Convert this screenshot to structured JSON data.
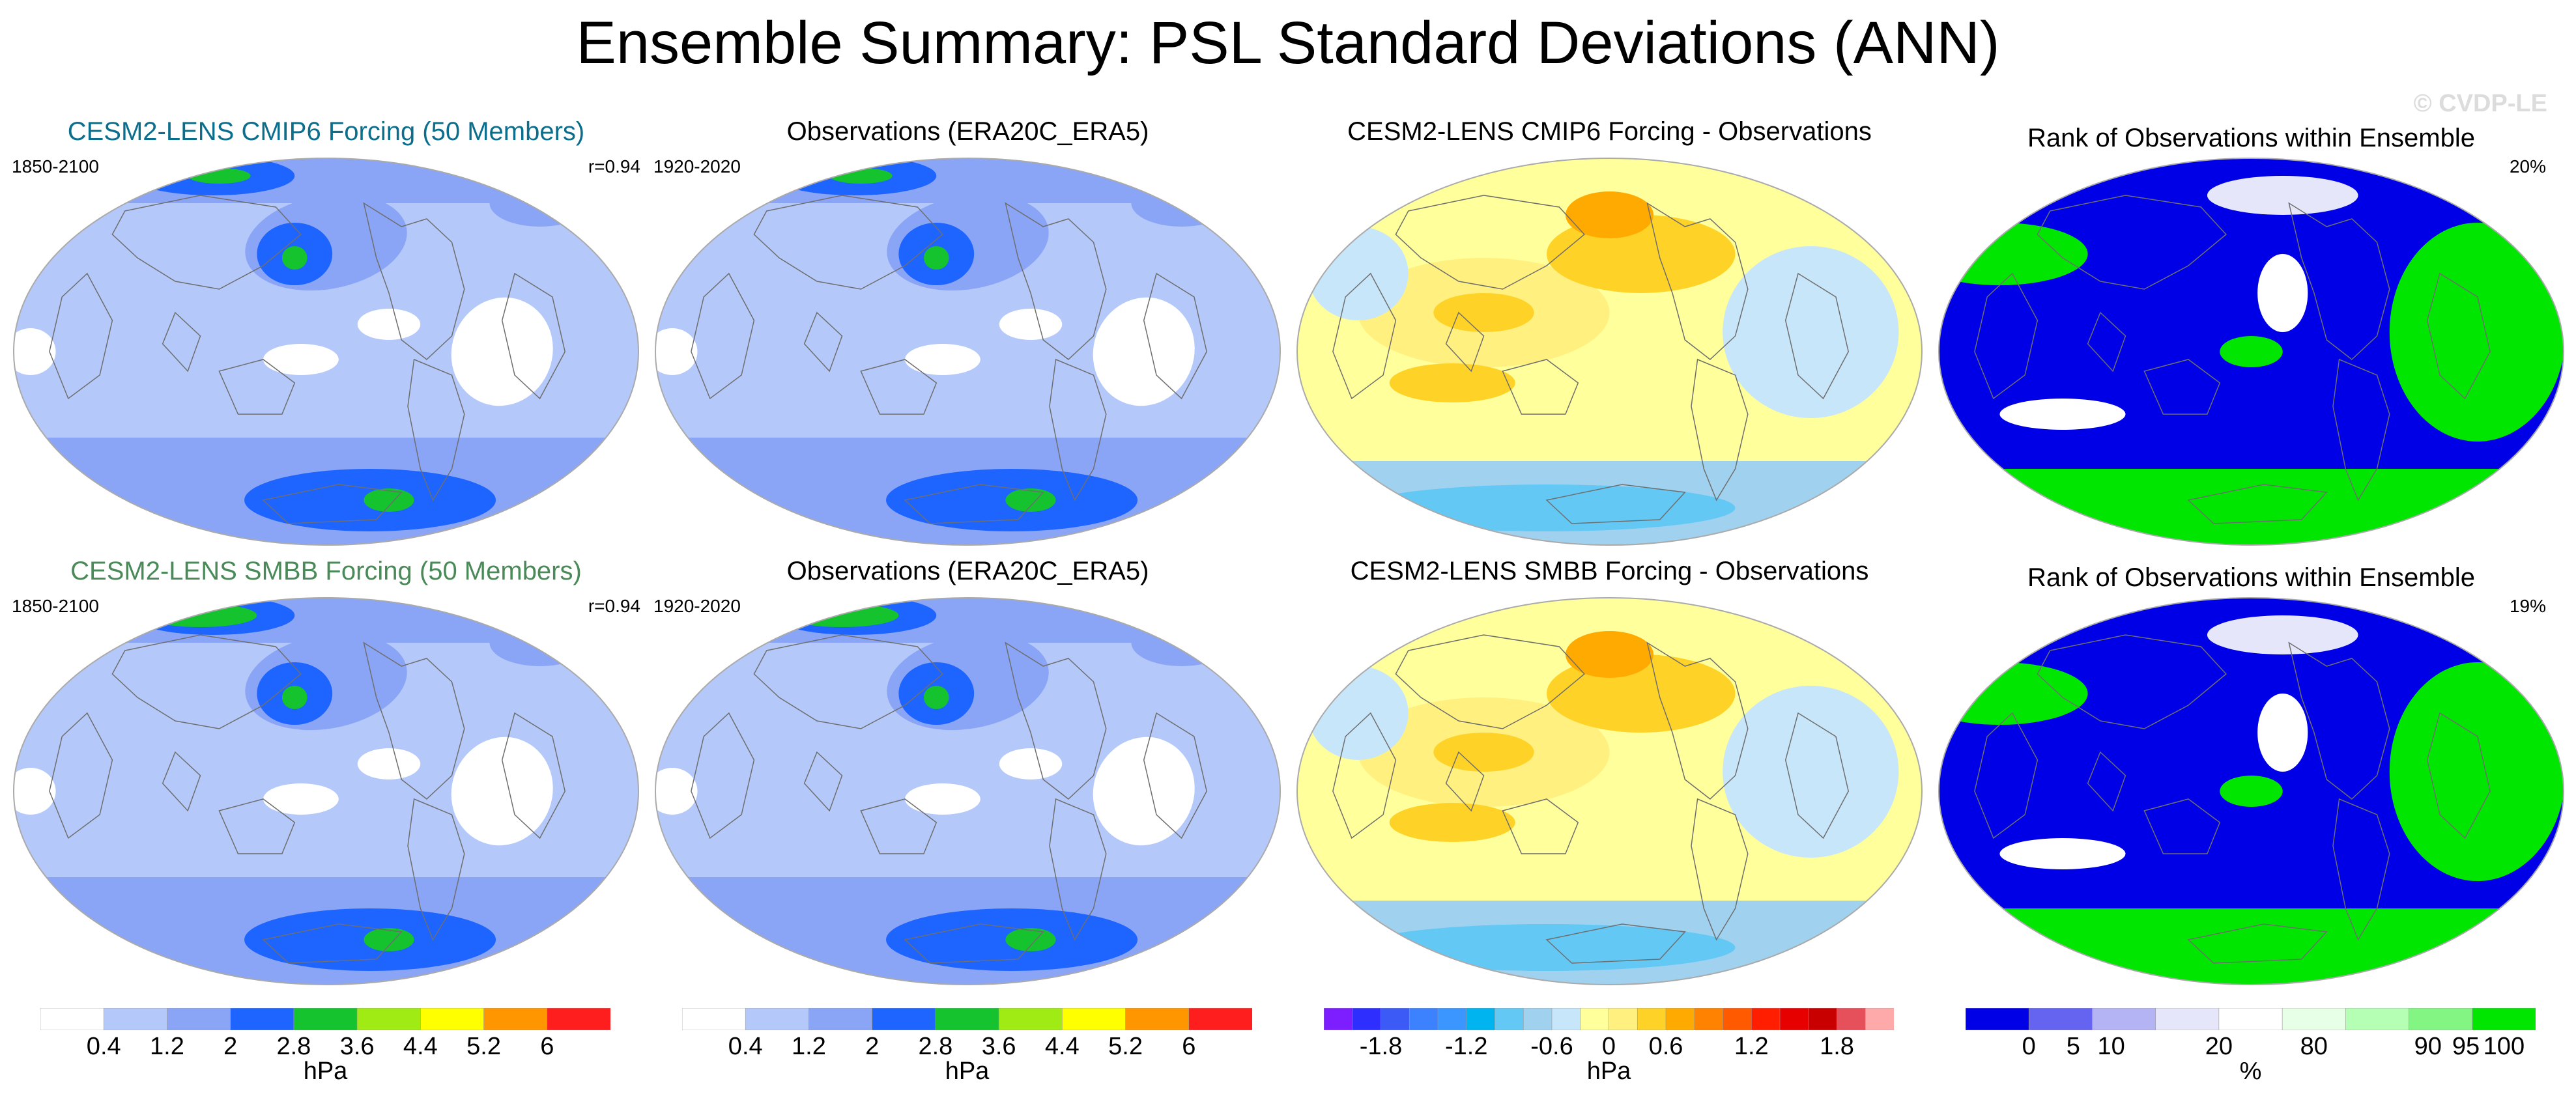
{
  "header": {
    "title": "Ensemble Summary: PSL Standard Deviations (ANN)",
    "watermark": "© CVDP-LE"
  },
  "palettes": {
    "std": [
      "#ffffff",
      "#b4c8fa",
      "#8aa5f5",
      "#1e64ff",
      "#14c32d",
      "#a0eb14",
      "#ffff00",
      "#ff9600",
      "#ff1e1e"
    ],
    "diff": [
      "#7c1eff",
      "#2e2eff",
      "#3c5af5",
      "#3c82ff",
      "#3c96ff",
      "#00b4f0",
      "#64c8f5",
      "#a0d2f0",
      "#c8e6fa",
      "#ffff9c",
      "#fff080",
      "#ffd228",
      "#ffaa00",
      "#ff8200",
      "#ff5a00",
      "#ff1e00",
      "#e60000",
      "#c80000",
      "#e6505a",
      "#ffaaaa"
    ],
    "rank": [
      "#0000e6",
      "#6464f0",
      "#b4b4f5",
      "#e6e6fa",
      "#ffffff",
      "#e6ffe6",
      "#b4ffb4",
      "#82f582",
      "#00e600"
    ]
  },
  "chart_data": [
    {
      "type": "heatmap",
      "panel": "row1-model",
      "title": "CESM2-LENS CMIP6 Forcing (50 Members)",
      "title_color": "#0a6e8c",
      "period": "1850-2100",
      "stat": "r=0.94",
      "palette": "std",
      "units": "hPa"
    },
    {
      "type": "heatmap",
      "panel": "row1-obs",
      "title": "Observations (ERA20C_ERA5)",
      "title_color": "#000000",
      "period": "1920-2020",
      "stat": "",
      "palette": "std",
      "units": "hPa"
    },
    {
      "type": "heatmap",
      "panel": "row1-diff",
      "title": "CESM2-LENS CMIP6 Forcing - Observations",
      "title_color": "#000000",
      "period": "",
      "stat": "",
      "palette": "diff",
      "units": "hPa"
    },
    {
      "type": "heatmap",
      "panel": "row1-rank",
      "title": "Rank of Observations within Ensemble",
      "title_color": "#000000",
      "period": "",
      "stat": "20%",
      "palette": "rank",
      "units": "%"
    },
    {
      "type": "heatmap",
      "panel": "row2-model",
      "title": "CESM2-LENS SMBB Forcing (50 Members)",
      "title_color": "#4a8a58",
      "period": "1850-2100",
      "stat": "r=0.94",
      "palette": "std",
      "units": "hPa"
    },
    {
      "type": "heatmap",
      "panel": "row2-obs",
      "title": "Observations (ERA20C_ERA5)",
      "title_color": "#000000",
      "period": "1920-2020",
      "stat": "",
      "palette": "std",
      "units": "hPa"
    },
    {
      "type": "heatmap",
      "panel": "row2-diff",
      "title": "CESM2-LENS SMBB Forcing - Observations",
      "title_color": "#000000",
      "period": "",
      "stat": "",
      "palette": "diff",
      "units": "hPa"
    },
    {
      "type": "heatmap",
      "panel": "row2-rank",
      "title": "Rank of Observations within Ensemble",
      "title_color": "#000000",
      "period": "",
      "stat": "19%",
      "palette": "rank",
      "units": "%"
    }
  ],
  "colorbars": [
    {
      "name": "std-colorbar-1",
      "palette": "std",
      "units": "hPa",
      "labels": [
        "0.4",
        "1.2",
        "2",
        "2.8",
        "3.6",
        "4.4",
        "5.2",
        "6"
      ],
      "label_positions": [
        1,
        2,
        3,
        4,
        5,
        6,
        7,
        8
      ]
    },
    {
      "name": "std-colorbar-2",
      "palette": "std",
      "units": "hPa",
      "labels": [
        "0.4",
        "1.2",
        "2",
        "2.8",
        "3.6",
        "4.4",
        "5.2",
        "6"
      ],
      "label_positions": [
        1,
        2,
        3,
        4,
        5,
        6,
        7,
        8
      ]
    },
    {
      "name": "diff-colorbar",
      "palette": "diff",
      "units": "hPa",
      "labels": [
        "-1.8",
        "-1.2",
        "-0.6",
        "0",
        "0.6",
        "1.2",
        "1.8"
      ],
      "label_positions": [
        2,
        5,
        8,
        10,
        12,
        15,
        18
      ]
    },
    {
      "name": "rank-colorbar",
      "palette": "rank",
      "units": "%",
      "labels": [
        "0",
        "5",
        "10",
        "20",
        "80",
        "90",
        "95",
        "100"
      ],
      "label_positions": [
        1,
        1.7,
        2.3,
        4,
        5.5,
        7.3,
        7.9,
        8.5
      ]
    }
  ]
}
